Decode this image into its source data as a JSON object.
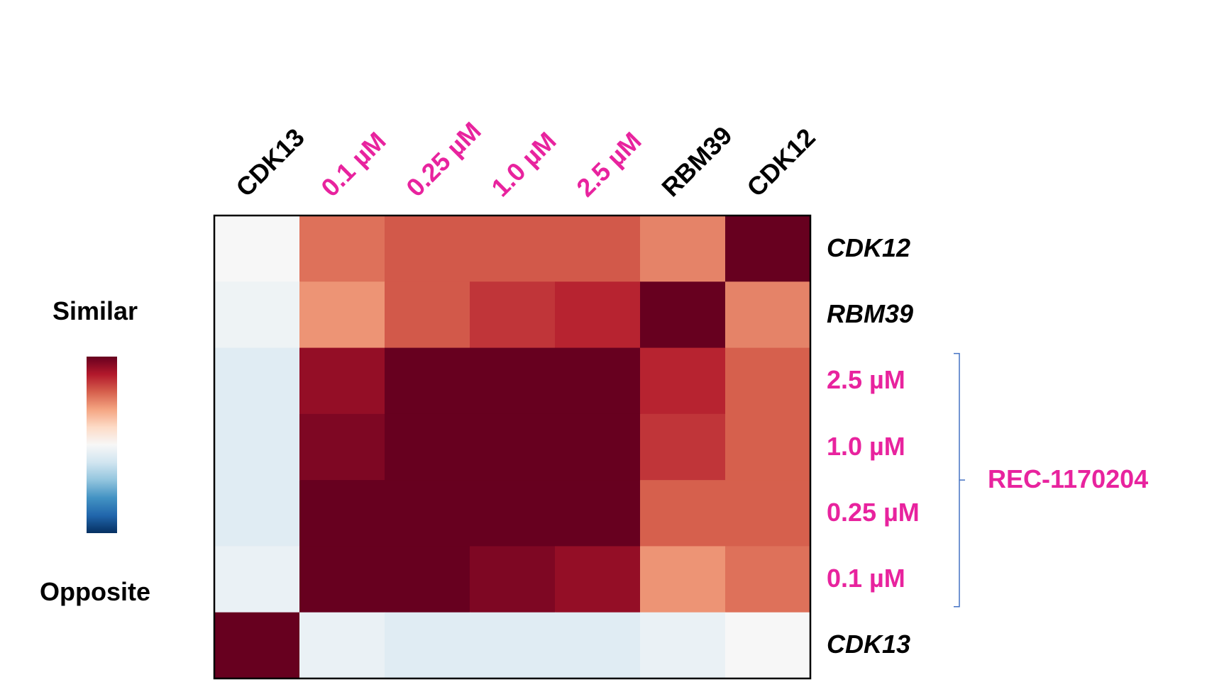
{
  "chart_data": {
    "type": "heatmap",
    "title": "",
    "columns": [
      "CDK13",
      "0.1 µM",
      "0.25 µM",
      "1.0 µM",
      "2.5 µM",
      "RBM39",
      "CDK12"
    ],
    "rows": [
      "CDK12",
      "RBM39",
      "2.5 µM",
      "1.0 µM",
      "0.25 µM",
      "0.1 µM",
      "CDK13"
    ],
    "highlight_labels": [
      "0.1 µM",
      "0.25 µM",
      "1.0 µM",
      "2.5 µM"
    ],
    "values": [
      [
        0.0,
        0.55,
        0.62,
        0.62,
        0.62,
        0.5,
        1.0
      ],
      [
        -0.05,
        0.45,
        0.62,
        0.72,
        0.77,
        1.0,
        0.5
      ],
      [
        -0.12,
        0.88,
        1.0,
        1.0,
        1.0,
        0.77,
        0.6
      ],
      [
        -0.12,
        0.94,
        1.0,
        1.0,
        1.0,
        0.72,
        0.6
      ],
      [
        -0.12,
        1.0,
        1.0,
        1.0,
        1.0,
        0.6,
        0.6
      ],
      [
        -0.07,
        1.0,
        1.0,
        0.94,
        0.88,
        0.45,
        0.55
      ],
      [
        1.0,
        -0.07,
        -0.12,
        -0.12,
        -0.12,
        -0.07,
        0.0
      ]
    ],
    "range": [
      -1,
      1
    ],
    "colormap": [
      "#053061",
      "#2166ac",
      "#4393c3",
      "#92c5de",
      "#d1e5f0",
      "#f7f7f7",
      "#fddbc7",
      "#f4a582",
      "#d6604d",
      "#b2182b",
      "#67001f"
    ],
    "legend": {
      "top_label": "Similar",
      "bottom_label": "Opposite",
      "placement": "left"
    },
    "group_bracket": {
      "label": "REC-1170204",
      "rows": [
        "2.5 µM",
        "1.0 µM",
        "0.25 µM",
        "0.1 µM"
      ]
    },
    "colors": {
      "highlight": "#e8239e",
      "default_label": "#000000",
      "bracket": "#4472c4"
    }
  }
}
